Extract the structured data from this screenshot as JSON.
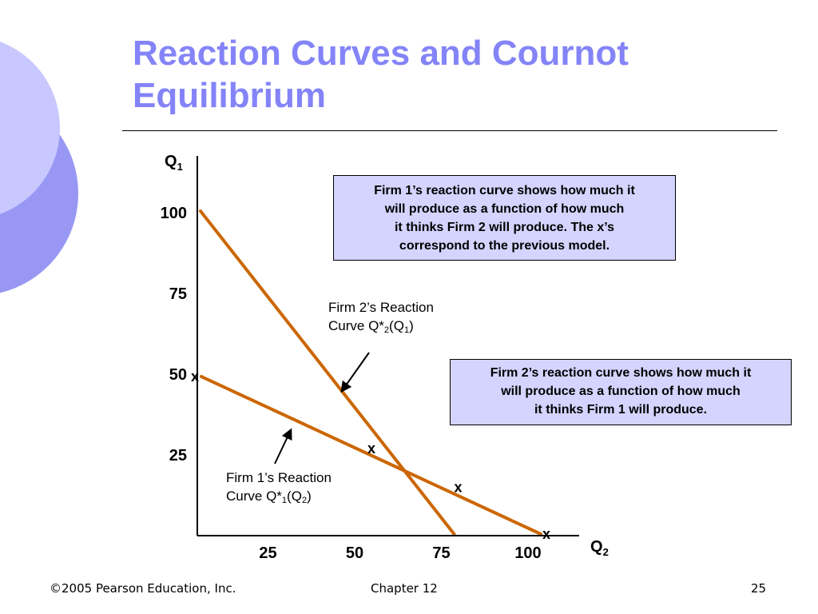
{
  "slide": {
    "title": "Reaction Curves and Cournot Equilibrium",
    "footer_left": "©2005 Pearson Education, Inc.",
    "footer_center": "Chapter 12",
    "page_number": "25"
  },
  "callouts": {
    "firm1": "Firm 1’s reaction curve shows how much it\nwill produce as a function of how much\nit thinks Firm 2 will produce. The x’s\ncorrespond to the previous model.",
    "firm2": "Firm 2’s reaction curve shows how much it\nwill produce as a function of how much\nit thinks Firm 1 will produce."
  },
  "labels": {
    "firm1_line1": "Firm 1’s Reaction",
    "firm1_curve_prefix": "Curve Q*",
    "firm1_sub_star": "1",
    "firm1_paren_open": "(Q",
    "firm1_sub_arg": "2",
    "firm1_paren_close": ")",
    "firm2_line1": "Firm 2’s Reaction",
    "firm2_curve_prefix": "Curve Q*",
    "firm2_sub_star": "2",
    "firm2_paren_open": "(Q",
    "firm2_sub_arg": "1",
    "firm2_paren_close": ")"
  },
  "colors": {
    "title": "#8484f8",
    "curve": "#cc6600",
    "callout_bg": "#d4d4ff",
    "deco_light": "#c8c8ff",
    "deco_dark": "#9898f4"
  },
  "chart_data": {
    "type": "line",
    "title": "Reaction Curves and Cournot Equilibrium",
    "x_axis": {
      "label": "Q",
      "label_sub": "2",
      "ticks": [
        25,
        50,
        75,
        100
      ],
      "range": [
        0,
        100
      ]
    },
    "y_axis": {
      "label": "Q",
      "label_sub": "1",
      "ticks": [
        25,
        50,
        75,
        100
      ],
      "range": [
        0,
        100
      ]
    },
    "series": [
      {
        "name": "Firm 1’s Reaction Curve Q*1(Q2)",
        "points": [
          [
            0,
            50
          ],
          [
            100,
            0
          ]
        ]
      },
      {
        "name": "Firm 2’s Reaction Curve Q*2(Q1)",
        "points": [
          [
            0,
            100
          ],
          [
            75,
            0
          ]
        ]
      }
    ],
    "x_markers": [
      {
        "label": "x",
        "x": 0,
        "y": 50
      },
      {
        "label": "x",
        "x": 50,
        "y": 25
      },
      {
        "label": "x",
        "x": 75,
        "y": 12.5
      },
      {
        "label": "x",
        "x": 100,
        "y": 0
      }
    ],
    "equilibrium": {
      "x": 60,
      "y": 20
    },
    "grid": false
  }
}
